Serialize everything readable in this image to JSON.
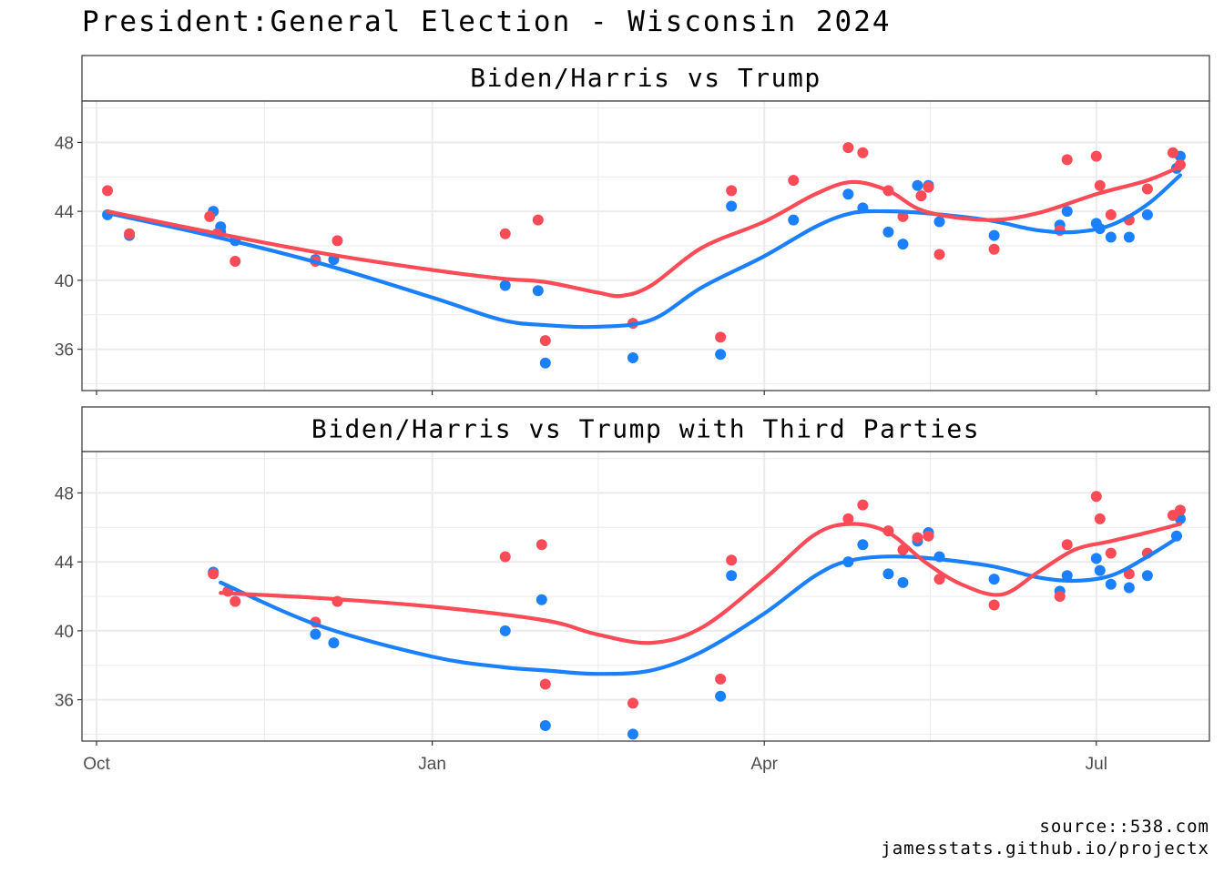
{
  "title": "President:General Election - Wisconsin 2024",
  "source_line1": "source::538.com",
  "source_line2": "jamesstats.github.io/projectx",
  "colors": {
    "biden_harris": "#1a80ff",
    "trump": "#fa4b57",
    "grid": "#ebebeb",
    "border": "#333333"
  },
  "chart_data": [
    {
      "type": "scatter",
      "title": "Biden/Harris vs Trump",
      "x_type": "date",
      "xlim": [
        "2023-09-27",
        "2024-08-01"
      ],
      "x_ticks": [
        {
          "date": "2023-10-01",
          "label": "Oct"
        },
        {
          "date": "2024-01-01",
          "label": "Jan"
        },
        {
          "date": "2024-04-01",
          "label": "Apr"
        },
        {
          "date": "2024-07-01",
          "label": "Jul"
        }
      ],
      "ylim": [
        33.6,
        50.4
      ],
      "y_ticks": [
        36,
        40,
        44,
        48
      ],
      "grid": true,
      "series": [
        {
          "color_key": "biden_harris",
          "points": [
            [
              "2023-10-04",
              43.8
            ],
            [
              "2023-10-10",
              42.6
            ],
            [
              "2023-11-02",
              44.0
            ],
            [
              "2023-11-04",
              43.1
            ],
            [
              "2023-11-04",
              42.8
            ],
            [
              "2023-11-08",
              42.3
            ],
            [
              "2023-11-30",
              41.2
            ],
            [
              "2023-12-05",
              41.2
            ],
            [
              "2024-01-21",
              39.7
            ],
            [
              "2024-01-30",
              39.4
            ],
            [
              "2024-02-01",
              35.2
            ],
            [
              "2024-02-25",
              35.5
            ],
            [
              "2024-03-20",
              35.7
            ],
            [
              "2024-03-23",
              44.3
            ],
            [
              "2024-04-09",
              43.5
            ],
            [
              "2024-04-24",
              45.0
            ],
            [
              "2024-04-28",
              44.2
            ],
            [
              "2024-05-05",
              42.8
            ],
            [
              "2024-05-09",
              42.1
            ],
            [
              "2024-05-13",
              45.5
            ],
            [
              "2024-05-16",
              45.5
            ],
            [
              "2024-05-19",
              43.4
            ],
            [
              "2024-06-03",
              42.6
            ],
            [
              "2024-06-21",
              43.2
            ],
            [
              "2024-06-23",
              44.0
            ],
            [
              "2024-07-01",
              43.3
            ],
            [
              "2024-07-02",
              43.0
            ],
            [
              "2024-07-05",
              42.5
            ],
            [
              "2024-07-10",
              42.5
            ],
            [
              "2024-07-15",
              43.8
            ],
            [
              "2024-07-23",
              46.5
            ],
            [
              "2024-07-24",
              47.2
            ]
          ],
          "smooth": [
            [
              "2023-10-04",
              43.9
            ],
            [
              "2023-11-01",
              42.6
            ],
            [
              "2023-12-01",
              41.0
            ],
            [
              "2024-01-01",
              39.0
            ],
            [
              "2024-01-20",
              37.7
            ],
            [
              "2024-02-01",
              37.4
            ],
            [
              "2024-02-15",
              37.3
            ],
            [
              "2024-03-01",
              37.7
            ],
            [
              "2024-03-15",
              39.6
            ],
            [
              "2024-04-01",
              41.4
            ],
            [
              "2024-04-15",
              43.1
            ],
            [
              "2024-04-25",
              43.9
            ],
            [
              "2024-05-05",
              44.0
            ],
            [
              "2024-05-15",
              43.9
            ],
            [
              "2024-06-01",
              43.5
            ],
            [
              "2024-06-15",
              42.9
            ],
            [
              "2024-06-25",
              42.8
            ],
            [
              "2024-07-05",
              43.2
            ],
            [
              "2024-07-15",
              44.4
            ],
            [
              "2024-07-24",
              46.1
            ]
          ]
        },
        {
          "color_key": "trump",
          "points": [
            [
              "2023-10-04",
              45.2
            ],
            [
              "2023-10-10",
              42.7
            ],
            [
              "2023-11-01",
              43.7
            ],
            [
              "2023-11-03",
              42.7
            ],
            [
              "2023-11-08",
              41.1
            ],
            [
              "2023-11-30",
              41.1
            ],
            [
              "2023-12-06",
              42.3
            ],
            [
              "2024-01-21",
              42.7
            ],
            [
              "2024-01-30",
              43.5
            ],
            [
              "2024-02-01",
              36.5
            ],
            [
              "2024-02-25",
              37.5
            ],
            [
              "2024-03-20",
              36.7
            ],
            [
              "2024-03-23",
              45.2
            ],
            [
              "2024-04-09",
              45.8
            ],
            [
              "2024-04-24",
              47.7
            ],
            [
              "2024-04-28",
              47.4
            ],
            [
              "2024-05-05",
              45.2
            ],
            [
              "2024-05-09",
              43.7
            ],
            [
              "2024-05-14",
              44.9
            ],
            [
              "2024-05-16",
              45.4
            ],
            [
              "2024-05-19",
              41.5
            ],
            [
              "2024-06-03",
              41.8
            ],
            [
              "2024-06-21",
              42.9
            ],
            [
              "2024-06-23",
              47.0
            ],
            [
              "2024-07-01",
              47.2
            ],
            [
              "2024-07-02",
              45.5
            ],
            [
              "2024-07-05",
              43.8
            ],
            [
              "2024-07-10",
              43.5
            ],
            [
              "2024-07-15",
              45.3
            ],
            [
              "2024-07-22",
              47.4
            ],
            [
              "2024-07-24",
              46.7
            ]
          ],
          "smooth": [
            [
              "2023-10-04",
              44.0
            ],
            [
              "2023-11-01",
              42.8
            ],
            [
              "2023-12-01",
              41.6
            ],
            [
              "2024-01-01",
              40.6
            ],
            [
              "2024-01-20",
              40.1
            ],
            [
              "2024-02-01",
              39.9
            ],
            [
              "2024-02-15",
              39.3
            ],
            [
              "2024-02-22",
              39.1
            ],
            [
              "2024-03-01",
              39.7
            ],
            [
              "2024-03-15",
              41.9
            ],
            [
              "2024-04-01",
              43.4
            ],
            [
              "2024-04-15",
              45.0
            ],
            [
              "2024-04-25",
              45.7
            ],
            [
              "2024-05-05",
              45.2
            ],
            [
              "2024-05-15",
              44.0
            ],
            [
              "2024-06-01",
              43.5
            ],
            [
              "2024-06-15",
              43.9
            ],
            [
              "2024-07-01",
              45.0
            ],
            [
              "2024-07-15",
              45.8
            ],
            [
              "2024-07-24",
              46.6
            ]
          ]
        }
      ]
    },
    {
      "type": "scatter",
      "title": "Biden/Harris vs Trump with Third Parties",
      "x_type": "date",
      "xlim": [
        "2023-09-27",
        "2024-08-01"
      ],
      "x_ticks": [
        {
          "date": "2023-10-01",
          "label": "Oct"
        },
        {
          "date": "2024-01-01",
          "label": "Jan"
        },
        {
          "date": "2024-04-01",
          "label": "Apr"
        },
        {
          "date": "2024-07-01",
          "label": "Jul"
        }
      ],
      "ylim": [
        33.6,
        50.4
      ],
      "y_ticks": [
        36,
        40,
        44,
        48
      ],
      "grid": true,
      "series": [
        {
          "color_key": "biden_harris",
          "points": [
            [
              "2023-11-02",
              43.4
            ],
            [
              "2023-11-30",
              39.8
            ],
            [
              "2023-12-05",
              39.3
            ],
            [
              "2024-01-21",
              40.0
            ],
            [
              "2024-01-31",
              41.8
            ],
            [
              "2024-02-01",
              34.5
            ],
            [
              "2024-02-25",
              34.0
            ],
            [
              "2024-03-20",
              36.2
            ],
            [
              "2024-03-23",
              43.2
            ],
            [
              "2024-04-24",
              44.0
            ],
            [
              "2024-04-28",
              45.0
            ],
            [
              "2024-05-05",
              43.3
            ],
            [
              "2024-05-09",
              42.8
            ],
            [
              "2024-05-13",
              45.2
            ],
            [
              "2024-05-16",
              45.7
            ],
            [
              "2024-05-19",
              44.3
            ],
            [
              "2024-06-03",
              43.0
            ],
            [
              "2024-06-21",
              42.3
            ],
            [
              "2024-06-23",
              43.2
            ],
            [
              "2024-07-01",
              44.2
            ],
            [
              "2024-07-02",
              43.5
            ],
            [
              "2024-07-05",
              42.7
            ],
            [
              "2024-07-10",
              42.5
            ],
            [
              "2024-07-15",
              43.2
            ],
            [
              "2024-07-23",
              45.5
            ],
            [
              "2024-07-24",
              46.5
            ]
          ],
          "smooth": [
            [
              "2023-11-04",
              42.8
            ],
            [
              "2023-12-01",
              40.3
            ],
            [
              "2024-01-01",
              38.5
            ],
            [
              "2024-01-20",
              37.9
            ],
            [
              "2024-02-01",
              37.7
            ],
            [
              "2024-02-15",
              37.5
            ],
            [
              "2024-03-01",
              37.7
            ],
            [
              "2024-03-15",
              38.8
            ],
            [
              "2024-04-01",
              41.0
            ],
            [
              "2024-04-15",
              43.2
            ],
            [
              "2024-04-25",
              44.1
            ],
            [
              "2024-05-10",
              44.3
            ],
            [
              "2024-06-01",
              43.8
            ],
            [
              "2024-06-15",
              43.1
            ],
            [
              "2024-06-25",
              42.9
            ],
            [
              "2024-07-05",
              43.2
            ],
            [
              "2024-07-15",
              44.3
            ],
            [
              "2024-07-24",
              45.5
            ]
          ]
        },
        {
          "color_key": "trump",
          "points": [
            [
              "2023-11-02",
              43.3
            ],
            [
              "2023-11-06",
              42.3
            ],
            [
              "2023-11-08",
              41.7
            ],
            [
              "2023-11-30",
              40.5
            ],
            [
              "2023-12-06",
              41.7
            ],
            [
              "2024-01-21",
              44.3
            ],
            [
              "2024-01-31",
              45.0
            ],
            [
              "2024-02-01",
              36.9
            ],
            [
              "2024-02-25",
              35.8
            ],
            [
              "2024-03-20",
              37.2
            ],
            [
              "2024-03-23",
              44.1
            ],
            [
              "2024-04-24",
              46.5
            ],
            [
              "2024-04-28",
              47.3
            ],
            [
              "2024-05-05",
              45.8
            ],
            [
              "2024-05-09",
              44.7
            ],
            [
              "2024-05-13",
              45.4
            ],
            [
              "2024-05-16",
              45.5
            ],
            [
              "2024-05-19",
              43.0
            ],
            [
              "2024-06-03",
              41.5
            ],
            [
              "2024-06-21",
              42.0
            ],
            [
              "2024-06-23",
              45.0
            ],
            [
              "2024-07-01",
              47.8
            ],
            [
              "2024-07-02",
              46.5
            ],
            [
              "2024-07-05",
              44.5
            ],
            [
              "2024-07-10",
              43.3
            ],
            [
              "2024-07-15",
              44.5
            ],
            [
              "2024-07-22",
              46.7
            ],
            [
              "2024-07-24",
              47.0
            ]
          ],
          "smooth": [
            [
              "2023-11-04",
              42.2
            ],
            [
              "2023-12-01",
              41.9
            ],
            [
              "2024-01-01",
              41.4
            ],
            [
              "2024-02-01",
              40.6
            ],
            [
              "2024-02-15",
              39.8
            ],
            [
              "2024-03-01",
              39.3
            ],
            [
              "2024-03-15",
              40.2
            ],
            [
              "2024-04-01",
              43.0
            ],
            [
              "2024-04-15",
              45.6
            ],
            [
              "2024-04-25",
              46.2
            ],
            [
              "2024-05-05",
              45.7
            ],
            [
              "2024-05-15",
              44.0
            ],
            [
              "2024-05-25",
              42.7
            ],
            [
              "2024-06-05",
              42.1
            ],
            [
              "2024-06-15",
              43.4
            ],
            [
              "2024-06-25",
              44.7
            ],
            [
              "2024-07-05",
              45.2
            ],
            [
              "2024-07-15",
              45.7
            ],
            [
              "2024-07-24",
              46.2
            ]
          ]
        }
      ]
    }
  ]
}
